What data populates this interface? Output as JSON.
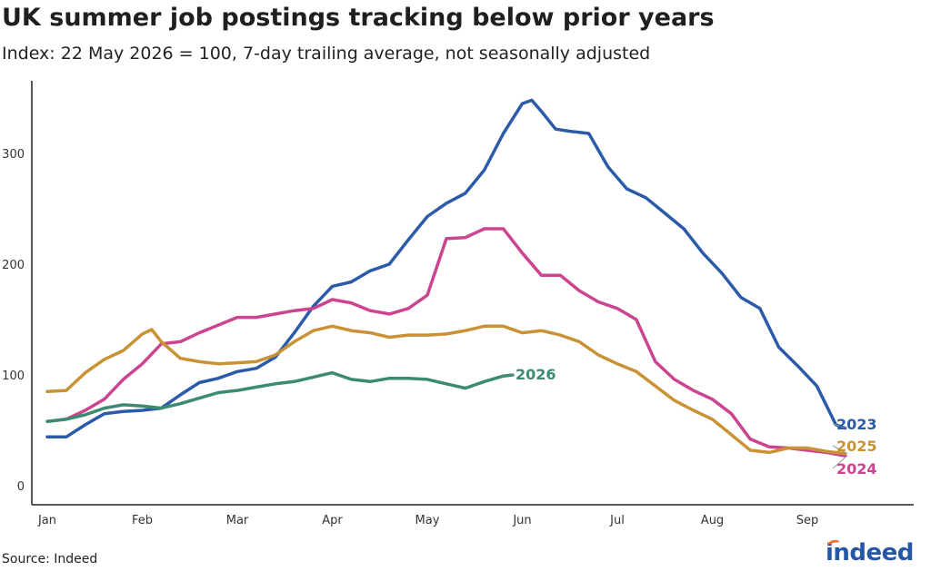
{
  "header": {
    "title": "UK summer job postings tracking below prior years",
    "subtitle": "Index: 22 May 2026 = 100, 7-day trailing average, not seasonally adjusted"
  },
  "footer": {
    "source": "Source: Indeed",
    "logo_text": "indeed"
  },
  "colors": {
    "2023": "#2b5ba8",
    "2024": "#cc4490",
    "2025": "#c99235",
    "2026": "#3b8a73",
    "axis": "#222222",
    "brand": "#2557a7",
    "brand_accent": "#ff6b2b"
  },
  "chart_data": {
    "type": "line",
    "title": "UK summer job postings tracking below prior years",
    "subtitle": "Index: 22 May 2026 = 100, 7-day trailing average, not seasonally adjusted",
    "xlabel": "",
    "ylabel": "",
    "x_unit": "months since 1 Jan",
    "xlim": [
      0,
      9
    ],
    "ylim": [
      0,
      350
    ],
    "xticks": [
      {
        "value": 0,
        "label": "Jan"
      },
      {
        "value": 1,
        "label": "Feb"
      },
      {
        "value": 2,
        "label": "Mar"
      },
      {
        "value": 3,
        "label": "Apr"
      },
      {
        "value": 4,
        "label": "May"
      },
      {
        "value": 5,
        "label": "Jun"
      },
      {
        "value": 6,
        "label": "Jul"
      },
      {
        "value": 7,
        "label": "Aug"
      },
      {
        "value": 8,
        "label": "Sep"
      }
    ],
    "yticks": [
      0,
      100,
      200,
      300
    ],
    "grid": false,
    "series": [
      {
        "name": "2023",
        "color": "#2b5ba8",
        "points": [
          [
            0,
            44
          ],
          [
            0.2,
            44
          ],
          [
            0.4,
            55
          ],
          [
            0.6,
            65
          ],
          [
            0.8,
            67
          ],
          [
            1.0,
            68
          ],
          [
            1.2,
            70
          ],
          [
            1.4,
            82
          ],
          [
            1.6,
            93
          ],
          [
            1.8,
            97
          ],
          [
            2.0,
            103
          ],
          [
            2.2,
            106
          ],
          [
            2.4,
            116
          ],
          [
            2.6,
            138
          ],
          [
            2.8,
            162
          ],
          [
            3.0,
            180
          ],
          [
            3.2,
            184
          ],
          [
            3.4,
            194
          ],
          [
            3.6,
            200
          ],
          [
            3.8,
            222
          ],
          [
            4.0,
            243
          ],
          [
            4.2,
            255
          ],
          [
            4.4,
            264
          ],
          [
            4.6,
            285
          ],
          [
            4.8,
            318
          ],
          [
            5.0,
            345
          ],
          [
            5.1,
            348
          ],
          [
            5.2,
            338
          ],
          [
            5.35,
            322
          ],
          [
            5.5,
            320
          ],
          [
            5.7,
            318
          ],
          [
            5.9,
            288
          ],
          [
            6.1,
            268
          ],
          [
            6.3,
            260
          ],
          [
            6.5,
            246
          ],
          [
            6.7,
            232
          ],
          [
            6.9,
            210
          ],
          [
            7.1,
            192
          ],
          [
            7.3,
            170
          ],
          [
            7.5,
            160
          ],
          [
            7.7,
            125
          ],
          [
            7.9,
            108
          ],
          [
            8.1,
            90
          ],
          [
            8.3,
            55
          ],
          [
            8.4,
            52
          ]
        ]
      },
      {
        "name": "2024",
        "color": "#cc4490",
        "points": [
          [
            0,
            58
          ],
          [
            0.2,
            60
          ],
          [
            0.4,
            68
          ],
          [
            0.6,
            78
          ],
          [
            0.8,
            96
          ],
          [
            1.0,
            110
          ],
          [
            1.2,
            128
          ],
          [
            1.4,
            130
          ],
          [
            1.6,
            138
          ],
          [
            1.8,
            145
          ],
          [
            2.0,
            152
          ],
          [
            2.2,
            152
          ],
          [
            2.4,
            155
          ],
          [
            2.6,
            158
          ],
          [
            2.8,
            160
          ],
          [
            3.0,
            168
          ],
          [
            3.2,
            165
          ],
          [
            3.4,
            158
          ],
          [
            3.6,
            155
          ],
          [
            3.8,
            160
          ],
          [
            4.0,
            172
          ],
          [
            4.2,
            223
          ],
          [
            4.4,
            224
          ],
          [
            4.6,
            232
          ],
          [
            4.8,
            232
          ],
          [
            5.0,
            210
          ],
          [
            5.2,
            190
          ],
          [
            5.4,
            190
          ],
          [
            5.6,
            176
          ],
          [
            5.8,
            166
          ],
          [
            6.0,
            160
          ],
          [
            6.2,
            150
          ],
          [
            6.4,
            112
          ],
          [
            6.6,
            96
          ],
          [
            6.8,
            86
          ],
          [
            7.0,
            78
          ],
          [
            7.2,
            65
          ],
          [
            7.4,
            42
          ],
          [
            7.6,
            35
          ],
          [
            7.8,
            34
          ],
          [
            8.0,
            32
          ],
          [
            8.2,
            30
          ],
          [
            8.4,
            27
          ]
        ]
      },
      {
        "name": "2025",
        "color": "#c99235",
        "points": [
          [
            0,
            85
          ],
          [
            0.2,
            86
          ],
          [
            0.4,
            102
          ],
          [
            0.6,
            114
          ],
          [
            0.8,
            122
          ],
          [
            1.0,
            137
          ],
          [
            1.1,
            141
          ],
          [
            1.2,
            130
          ],
          [
            1.4,
            115
          ],
          [
            1.6,
            112
          ],
          [
            1.8,
            110
          ],
          [
            2.0,
            111
          ],
          [
            2.2,
            112
          ],
          [
            2.4,
            118
          ],
          [
            2.6,
            130
          ],
          [
            2.8,
            140
          ],
          [
            3.0,
            144
          ],
          [
            3.2,
            140
          ],
          [
            3.4,
            138
          ],
          [
            3.6,
            134
          ],
          [
            3.8,
            136
          ],
          [
            4.0,
            136
          ],
          [
            4.2,
            137
          ],
          [
            4.4,
            140
          ],
          [
            4.6,
            144
          ],
          [
            4.8,
            144
          ],
          [
            5.0,
            138
          ],
          [
            5.2,
            140
          ],
          [
            5.4,
            136
          ],
          [
            5.6,
            130
          ],
          [
            5.8,
            118
          ],
          [
            6.0,
            110
          ],
          [
            6.2,
            103
          ],
          [
            6.4,
            90
          ],
          [
            6.6,
            77
          ],
          [
            6.8,
            68
          ],
          [
            7.0,
            60
          ],
          [
            7.2,
            46
          ],
          [
            7.4,
            32
          ],
          [
            7.6,
            30
          ],
          [
            7.8,
            34
          ],
          [
            8.0,
            34
          ],
          [
            8.2,
            31
          ],
          [
            8.4,
            29
          ]
        ]
      },
      {
        "name": "2026",
        "color": "#3b8a73",
        "points": [
          [
            0,
            58
          ],
          [
            0.2,
            60
          ],
          [
            0.4,
            64
          ],
          [
            0.6,
            70
          ],
          [
            0.8,
            73
          ],
          [
            1.0,
            72
          ],
          [
            1.2,
            70
          ],
          [
            1.4,
            74
          ],
          [
            1.6,
            79
          ],
          [
            1.8,
            84
          ],
          [
            2.0,
            86
          ],
          [
            2.2,
            89
          ],
          [
            2.4,
            92
          ],
          [
            2.6,
            94
          ],
          [
            2.8,
            98
          ],
          [
            3.0,
            102
          ],
          [
            3.2,
            96
          ],
          [
            3.4,
            94
          ],
          [
            3.6,
            97
          ],
          [
            3.8,
            97
          ],
          [
            4.0,
            96
          ],
          [
            4.2,
            92
          ],
          [
            4.4,
            88
          ],
          [
            4.6,
            94
          ],
          [
            4.8,
            99
          ],
          [
            4.9,
            100
          ]
        ]
      }
    ]
  }
}
